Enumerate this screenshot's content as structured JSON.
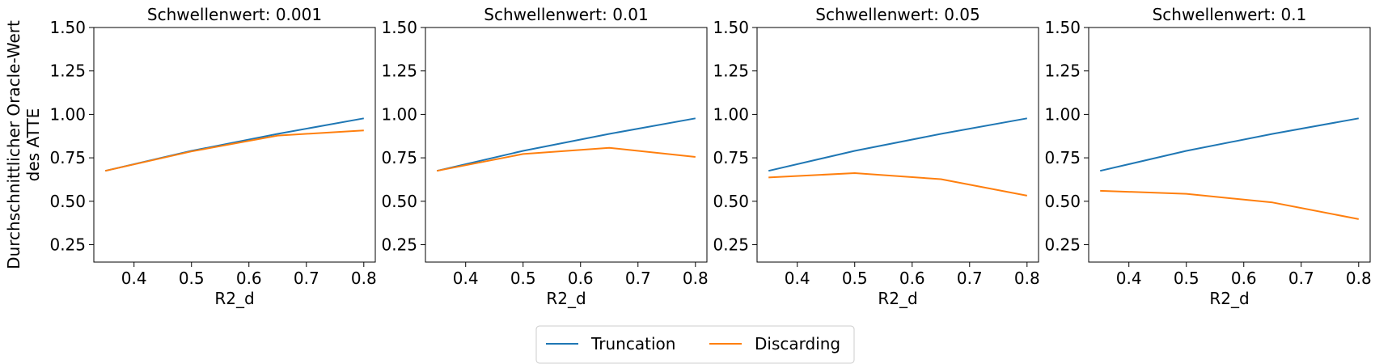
{
  "ylabel_lines": [
    "Durchschnittlicher Oracle-Wert",
    "des ATTE"
  ],
  "colors": {
    "truncation": "#1f77b4",
    "discarding": "#ff7f0e",
    "axis": "#000000",
    "legend_border": "#cccccc"
  },
  "legend": {
    "items": [
      {
        "label": "Truncation",
        "color": "#1f77b4"
      },
      {
        "label": "Discarding",
        "color": "#ff7f0e"
      }
    ],
    "placement": "bottom-center",
    "columns": 2
  },
  "chart_data": [
    {
      "type": "line",
      "title": "Schwellenwert: 0.001",
      "xlabel": "R2_d",
      "ylabel": "Durchschnittlicher Oracle-Wert des ATTE",
      "x": [
        0.35,
        0.5,
        0.65,
        0.8
      ],
      "xlim": [
        0.33,
        0.82
      ],
      "ylim": [
        0.15,
        1.5
      ],
      "xticks": [
        "0.4",
        "0.5",
        "0.6",
        "0.7",
        "0.8"
      ],
      "yticks": [
        "0.25",
        "0.50",
        "0.75",
        "1.00",
        "1.25",
        "1.50"
      ],
      "grid": false,
      "series": [
        {
          "name": "Truncation",
          "values": [
            0.675,
            0.79,
            0.888,
            0.977
          ]
        },
        {
          "name": "Discarding",
          "values": [
            0.675,
            0.787,
            0.878,
            0.908
          ]
        }
      ]
    },
    {
      "type": "line",
      "title": "Schwellenwert: 0.01",
      "xlabel": "R2_d",
      "ylabel": "",
      "x": [
        0.35,
        0.5,
        0.65,
        0.8
      ],
      "xlim": [
        0.33,
        0.82
      ],
      "ylim": [
        0.15,
        1.5
      ],
      "xticks": [
        "0.4",
        "0.5",
        "0.6",
        "0.7",
        "0.8"
      ],
      "yticks": [
        "0.25",
        "0.50",
        "0.75",
        "1.00",
        "1.25",
        "1.50"
      ],
      "grid": false,
      "series": [
        {
          "name": "Truncation",
          "values": [
            0.675,
            0.79,
            0.888,
            0.977
          ]
        },
        {
          "name": "Discarding",
          "values": [
            0.675,
            0.772,
            0.808,
            0.755
          ]
        }
      ]
    },
    {
      "type": "line",
      "title": "Schwellenwert: 0.05",
      "xlabel": "R2_d",
      "ylabel": "",
      "x": [
        0.35,
        0.5,
        0.65,
        0.8
      ],
      "xlim": [
        0.33,
        0.82
      ],
      "ylim": [
        0.15,
        1.5
      ],
      "xticks": [
        "0.4",
        "0.5",
        "0.6",
        "0.7",
        "0.8"
      ],
      "yticks": [
        "0.25",
        "0.50",
        "0.75",
        "1.00",
        "1.25",
        "1.50"
      ],
      "grid": false,
      "series": [
        {
          "name": "Truncation",
          "values": [
            0.675,
            0.79,
            0.888,
            0.977
          ]
        },
        {
          "name": "Discarding",
          "values": [
            0.637,
            0.662,
            0.627,
            0.532
          ]
        }
      ]
    },
    {
      "type": "line",
      "title": "Schwellenwert: 0.1",
      "xlabel": "R2_d",
      "ylabel": "",
      "x": [
        0.35,
        0.5,
        0.65,
        0.8
      ],
      "xlim": [
        0.33,
        0.82
      ],
      "ylim": [
        0.15,
        1.5
      ],
      "xticks": [
        "0.4",
        "0.5",
        "0.6",
        "0.7",
        "0.8"
      ],
      "yticks": [
        "0.25",
        "0.50",
        "0.75",
        "1.00",
        "1.25",
        "1.50"
      ],
      "grid": false,
      "series": [
        {
          "name": "Truncation",
          "values": [
            0.675,
            0.79,
            0.888,
            0.977
          ]
        },
        {
          "name": "Discarding",
          "values": [
            0.56,
            0.543,
            0.493,
            0.397
          ]
        }
      ]
    }
  ]
}
